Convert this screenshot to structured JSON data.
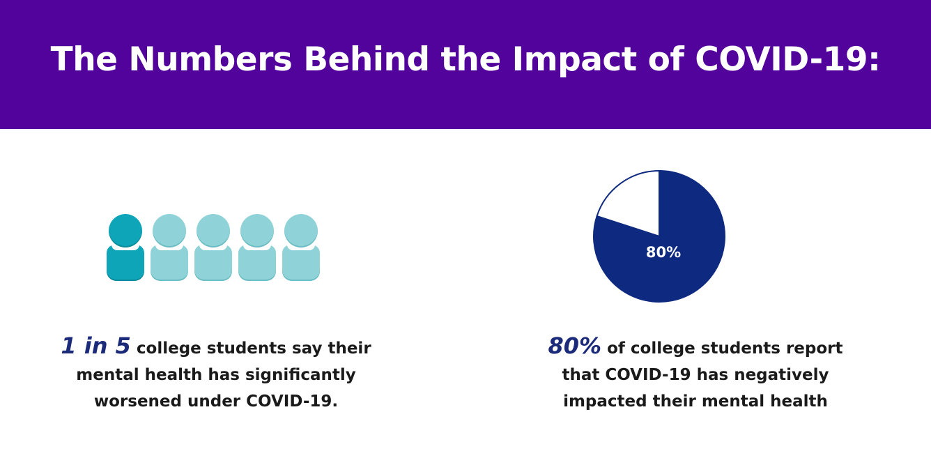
{
  "banner": {
    "title": "The Numbers Behind the Impact of COVID-19:",
    "color": "#52039b"
  },
  "left_stat": {
    "highlight": "1 in 5",
    "line1_rest": "college students say their",
    "line2": "mental health has significantly",
    "line3": "worsened under COVID-19.",
    "icon": "person-icon",
    "highlighted_count": 1,
    "total_count": 5,
    "highlight_color": "#0ea5b9",
    "base_color": "#8fd3d8"
  },
  "right_stat": {
    "highlight": "80%",
    "line1_rest": "of college students report",
    "line2": "that COVID-19 has negatively",
    "line3": "impacted their mental health",
    "highlight_color": "#1c2a7a"
  },
  "chart_data": {
    "type": "pie",
    "slices": [
      {
        "label": "80%",
        "value": 80,
        "color": "#0e2a80"
      },
      {
        "label": "",
        "value": 20,
        "color": "#ffffff"
      }
    ],
    "title": ""
  }
}
